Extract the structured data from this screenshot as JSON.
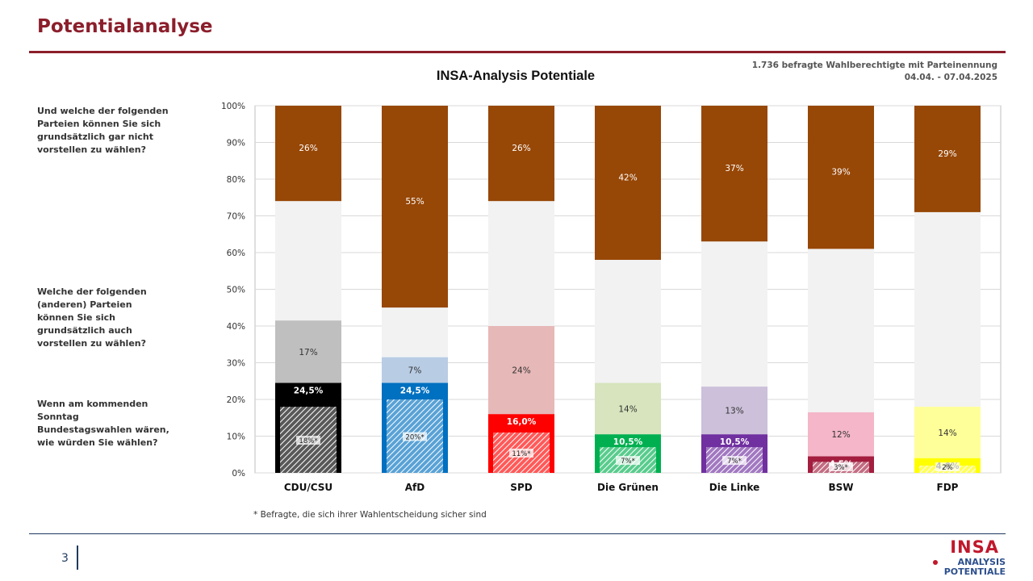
{
  "header": {
    "title": "Potentialanalyse",
    "source_line1": "1.736 befragte Wahlberechtigte mit Parteinennung",
    "source_line2": "04.04. - 07.04.2025"
  },
  "questions": {
    "q1": "Und welche der folgenden Parteien können Sie sich grundsätzlich gar nicht vorstellen zu wählen?",
    "q2": "Welche der folgenden (anderen) Parteien können Sie sich grundsätzlich auch vorstellen zu wählen?",
    "q3": "Wenn am kommenden Sonntag Bundestagswahlen wären, wie würden Sie wählen?"
  },
  "footnote": "* Befragte, die sich ihrer Wahlentscheidung sicher sind",
  "footer": {
    "page_number": "3",
    "logo_word": "INSA",
    "logo_line1": "ANALYSIS",
    "logo_line2": "POTENTIALE"
  },
  "colors": {
    "accent": "#8b1e2b",
    "rejection": "#974706",
    "neutral": "#f2f2f2",
    "navy": "#1f3a5f"
  },
  "chart_data": {
    "type": "bar",
    "stacked": true,
    "title": "INSA-Analysis Potentiale",
    "ylim": [
      0,
      100
    ],
    "y_ticks": [
      "0%",
      "10%",
      "20%",
      "30%",
      "40%",
      "50%",
      "60%",
      "70%",
      "80%",
      "90%",
      "100%"
    ],
    "grid": true,
    "categories": [
      "CDU/CSU",
      "AfD",
      "SPD",
      "Die Grünen",
      "Die Linke",
      "BSW",
      "FDP"
    ],
    "vote": {
      "values": [
        24.5,
        24.5,
        16.0,
        10.5,
        10.5,
        4.5,
        4.0
      ],
      "labels": [
        "24,5%",
        "24,5%",
        "16,0%",
        "10,5%",
        "10,5%",
        "4,5%",
        "4,0%"
      ],
      "colors": [
        "#000000",
        "#0070c0",
        "#ff0000",
        "#00b050",
        "#7030a0",
        "#a31e3f",
        "#ffff00"
      ]
    },
    "sure": {
      "values": [
        18,
        20,
        11,
        7,
        7,
        3,
        2
      ],
      "labels": [
        "18%*",
        "20%*",
        "11%*",
        "7%*",
        "7%*",
        "3%*",
        "2%"
      ]
    },
    "potential": {
      "values": [
        17,
        7,
        24,
        14,
        13,
        12,
        14
      ],
      "labels": [
        "17%",
        "7%",
        "24%",
        "14%",
        "13%",
        "12%",
        "14%"
      ],
      "colors": [
        "#bfbfbf",
        "#b8cce4",
        "#e6b8b7",
        "#d7e4bd",
        "#ccc0da",
        "#f4b6c8",
        "#ffff99"
      ]
    },
    "rejection": {
      "values": [
        26,
        55,
        26,
        42,
        37,
        39,
        29
      ],
      "labels": [
        "26%",
        "55%",
        "26%",
        "42%",
        "37%",
        "39%",
        "29%"
      ]
    }
  }
}
